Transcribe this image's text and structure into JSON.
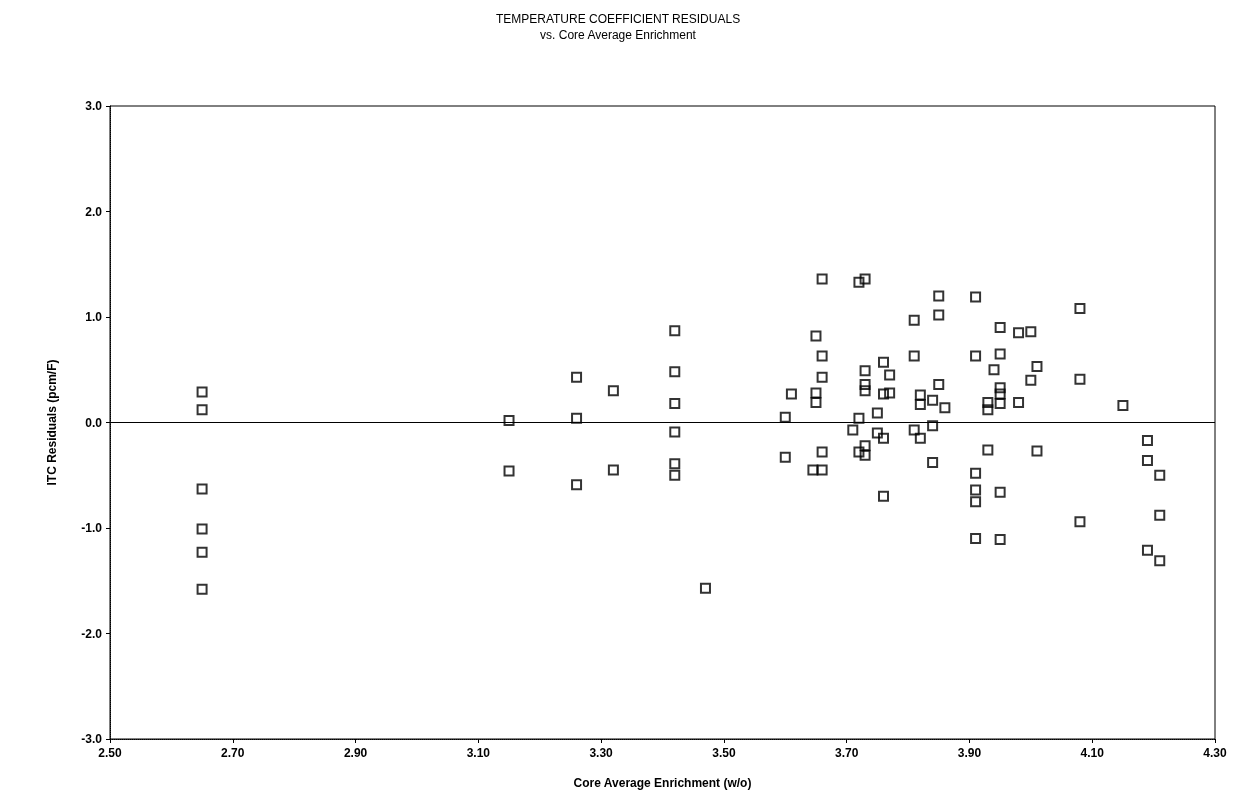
{
  "chart_data": {
    "type": "scatter",
    "title": "TEMPERATURE COEFFICIENT RESIDUALS",
    "subtitle": "vs. Core Average Enrichment",
    "xlabel": "Core Average Enrichment (w/o)",
    "ylabel": "ITC Residuals (pcm/F)",
    "xlim": [
      2.5,
      4.3
    ],
    "xticks": [
      {
        "value": 2.5,
        "label": "2.50"
      },
      {
        "value": 2.7,
        "label": "2.70"
      },
      {
        "value": 2.9,
        "label": "2.90"
      },
      {
        "value": 3.1,
        "label": "3.10"
      },
      {
        "value": 3.3,
        "label": "3.30"
      },
      {
        "value": 3.5,
        "label": "3.50"
      },
      {
        "value": 3.7,
        "label": "3.70"
      },
      {
        "value": 3.9,
        "label": "3.90"
      },
      {
        "value": 4.1,
        "label": "4.10"
      },
      {
        "value": 4.3,
        "label": "4.30"
      }
    ],
    "ylim": [
      -3,
      3
    ],
    "yticks": [
      {
        "value": -3,
        "label": "-3.0"
      },
      {
        "value": -2,
        "label": "-2.0"
      },
      {
        "value": -1,
        "label": "-1.0"
      },
      {
        "value": 0,
        "label": "0.0"
      },
      {
        "value": 1,
        "label": "1.0"
      },
      {
        "value": 2,
        "label": "2.0"
      },
      {
        "value": 3,
        "label": "3.0"
      }
    ],
    "grid": false,
    "marker": "square",
    "ref_lines": [
      {
        "axis": "y",
        "value": 0,
        "color": "#000000",
        "line_style": "solid"
      }
    ],
    "series": [
      {
        "color": "#000000",
        "x": [
          2.65,
          2.65,
          2.65,
          2.65,
          2.65,
          2.65,
          3.15,
          3.15,
          3.26,
          3.26,
          3.26,
          3.32,
          3.32,
          3.42,
          3.42,
          3.42,
          3.42,
          3.42,
          3.42,
          3.47,
          3.6,
          3.6,
          3.61,
          3.65,
          3.65,
          3.65,
          3.645,
          3.66,
          3.66,
          3.66,
          3.66,
          3.66,
          3.71,
          3.72,
          3.72,
          3.72,
          3.73,
          3.73,
          3.73,
          3.73,
          3.73,
          3.73,
          3.75,
          3.75,
          3.76,
          3.76,
          3.76,
          3.76,
          3.77,
          3.77,
          3.81,
          3.81,
          3.81,
          3.82,
          3.82,
          3.82,
          3.84,
          3.84,
          3.84,
          3.85,
          3.85,
          3.85,
          3.86,
          3.91,
          3.91,
          3.91,
          3.91,
          3.91,
          3.91,
          3.93,
          3.93,
          3.93,
          3.94,
          3.95,
          3.95,
          3.95,
          3.95,
          3.95,
          3.95,
          3.95,
          3.98,
          3.98,
          4.0,
          4.0,
          4.01,
          4.01,
          4.08,
          4.08,
          4.08,
          4.15,
          4.19,
          4.19,
          4.19,
          4.21,
          4.21,
          4.21
        ],
        "values": [
          0.29,
          0.12,
          -0.63,
          -1.01,
          -1.23,
          -1.58,
          0.02,
          -0.46,
          0.43,
          0.04,
          -0.59,
          0.3,
          -0.45,
          0.87,
          0.48,
          0.18,
          -0.09,
          -0.39,
          -0.5,
          -1.57,
          0.05,
          -0.33,
          0.27,
          0.82,
          0.28,
          0.19,
          -0.45,
          1.36,
          0.63,
          0.43,
          -0.28,
          -0.45,
          -0.07,
          1.33,
          0.04,
          -0.28,
          1.36,
          0.49,
          0.36,
          0.3,
          -0.22,
          -0.31,
          0.09,
          -0.1,
          0.57,
          0.27,
          -0.15,
          -0.7,
          0.45,
          0.28,
          0.97,
          0.63,
          -0.07,
          0.26,
          0.17,
          -0.15,
          0.21,
          -0.03,
          -0.38,
          1.2,
          1.02,
          0.36,
          0.14,
          1.19,
          0.63,
          -0.48,
          -0.64,
          -0.75,
          -1.1,
          0.19,
          0.12,
          -0.26,
          0.5,
          0.9,
          0.65,
          0.33,
          0.27,
          0.18,
          -0.66,
          -1.11,
          0.85,
          0.19,
          0.86,
          0.4,
          0.53,
          -0.27,
          1.08,
          0.41,
          -0.94,
          0.16,
          -0.17,
          -0.36,
          -1.21,
          -0.5,
          -0.88,
          -1.31
        ]
      }
    ]
  }
}
